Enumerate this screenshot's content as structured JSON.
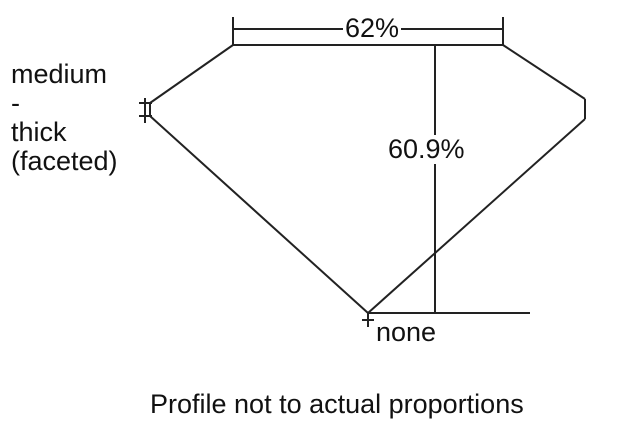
{
  "diagram": {
    "table_label": "62%",
    "depth_label": "60.9%",
    "girdle_label_lines": [
      "medium",
      "-",
      "thick",
      "(faceted)"
    ],
    "culet_label": "none",
    "footnote": "Profile not to actual proportions",
    "line_color": "#222222"
  }
}
